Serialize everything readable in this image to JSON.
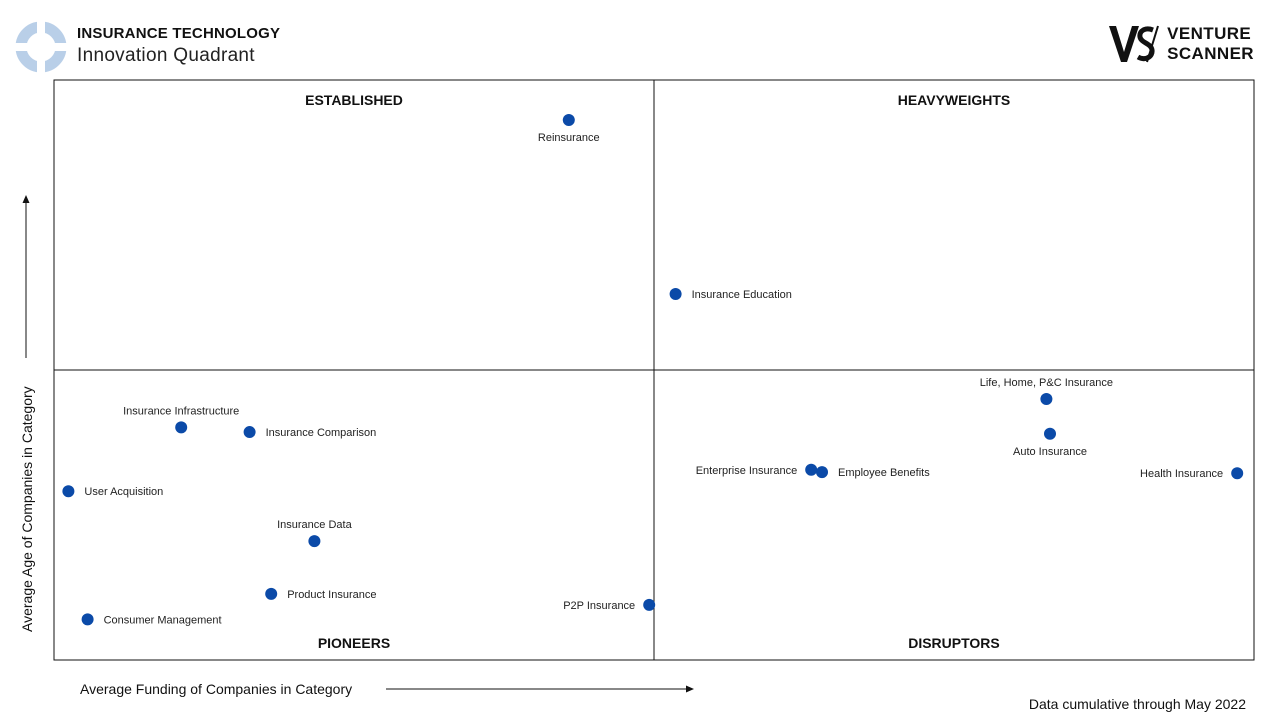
{
  "header": {
    "title": "INSURANCE TECHNOLOGY",
    "subtitle": "Innovation Quadrant",
    "brand_line1": "VENTURE",
    "brand_line2": "SCANNER",
    "logo_icon": "circle-quadrant-logo-icon",
    "brand_icon": "vs-monogram-icon"
  },
  "chart_data": {
    "type": "scatter",
    "xlabel": "Average Funding of Companies in Category",
    "ylabel": "Average Age of Companies in Category",
    "quadrants": {
      "top_left": "ESTABLISHED",
      "top_right": "HEAVYWEIGHTS",
      "bottom_left": "PIONEERS",
      "bottom_right": "DISRUPTORS"
    },
    "xlim": [
      0,
      100
    ],
    "ylim": [
      0,
      100
    ],
    "grid": false,
    "point_color": "#0b4aa8",
    "points": [
      {
        "name": "Reinsurance",
        "x": 42.9,
        "y": 93.1,
        "label_pos": "below"
      },
      {
        "name": "Insurance Education",
        "x": 51.8,
        "y": 63.1,
        "label_pos": "right"
      },
      {
        "name": "Life, Home, P&C Insurance",
        "x": 82.7,
        "y": 45.0,
        "label_pos": "above"
      },
      {
        "name": "Auto Insurance",
        "x": 83.0,
        "y": 39.0,
        "label_pos": "below"
      },
      {
        "name": "Insurance Infrastructure",
        "x": 10.6,
        "y": 40.1,
        "label_pos": "above"
      },
      {
        "name": "Insurance Comparison",
        "x": 16.3,
        "y": 39.3,
        "label_pos": "right"
      },
      {
        "name": "Enterprise Insurance",
        "x": 63.1,
        "y": 32.8,
        "label_pos": "left"
      },
      {
        "name": "Employee Benefits",
        "x": 64.0,
        "y": 32.4,
        "label_pos": "right"
      },
      {
        "name": "Health Insurance",
        "x": 98.6,
        "y": 32.2,
        "label_pos": "left"
      },
      {
        "name": "User Acquisition",
        "x": 1.2,
        "y": 29.1,
        "label_pos": "right"
      },
      {
        "name": "Insurance Data",
        "x": 21.7,
        "y": 20.5,
        "label_pos": "above"
      },
      {
        "name": "Product Insurance",
        "x": 18.1,
        "y": 11.4,
        "label_pos": "right"
      },
      {
        "name": "P2P Insurance",
        "x": 49.6,
        "y": 9.5,
        "label_pos": "left"
      },
      {
        "name": "Consumer Management",
        "x": 2.8,
        "y": 7.0,
        "label_pos": "right"
      }
    ]
  },
  "footer": {
    "note": "Data cumulative through May 2022"
  }
}
